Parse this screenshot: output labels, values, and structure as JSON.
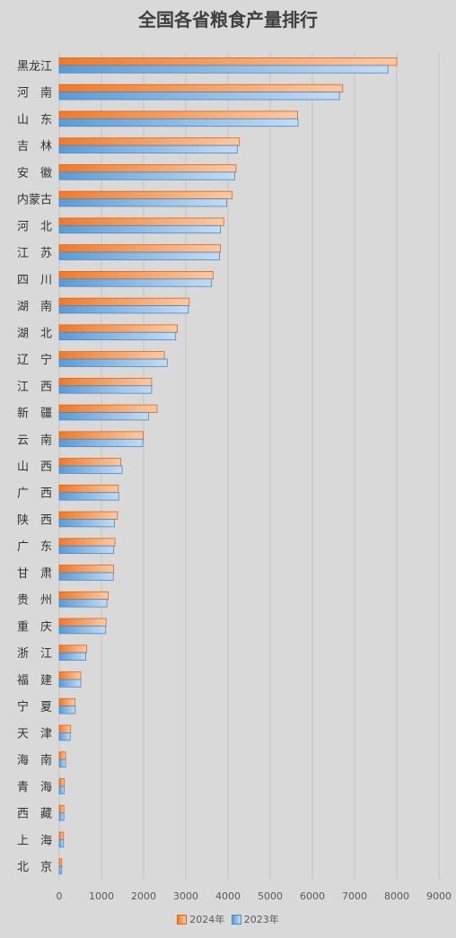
{
  "chart_data": {
    "type": "bar",
    "orientation": "horizontal",
    "title": "全国各省粮食产量排行",
    "xlabel": "",
    "ylabel": "",
    "xlim": [
      0,
      9000
    ],
    "xticks": [
      0,
      1000,
      2000,
      3000,
      4000,
      5000,
      6000,
      7000,
      8000,
      9000
    ],
    "grid": true,
    "legend_position": "bottom",
    "categories": [
      "黑龙江",
      "河　南",
      "山　东",
      "吉　林",
      "安　徽",
      "内蒙古",
      "河　北",
      "江　苏",
      "四　川",
      "湖　南",
      "湖　北",
      "辽　宁",
      "江　西",
      "新　疆",
      "云　南",
      "山　西",
      "广　西",
      "陕　西",
      "广　东",
      "甘　肃",
      "贵　州",
      "重　庆",
      "浙　江",
      "福　建",
      "宁　夏",
      "天　津",
      "海　南",
      "青　海",
      "西　藏",
      "上　海",
      "北　京"
    ],
    "series": [
      {
        "name": "2024年",
        "color": "#ed7d31",
        "values": [
          8000,
          6720,
          5650,
          4270,
          4190,
          4100,
          3900,
          3820,
          3650,
          3080,
          2800,
          2490,
          2190,
          2320,
          1990,
          1460,
          1400,
          1380,
          1320,
          1290,
          1160,
          1110,
          650,
          510,
          370,
          270,
          150,
          120,
          110,
          100,
          60
        ]
      },
      {
        "name": "2023年",
        "color": "#5b9bd5",
        "values": [
          7790,
          6640,
          5660,
          4220,
          4160,
          3970,
          3820,
          3800,
          3610,
          3060,
          2760,
          2560,
          2190,
          2120,
          1980,
          1490,
          1410,
          1310,
          1290,
          1280,
          1130,
          1100,
          630,
          510,
          380,
          260,
          150,
          120,
          110,
          100,
          60
        ]
      }
    ]
  }
}
